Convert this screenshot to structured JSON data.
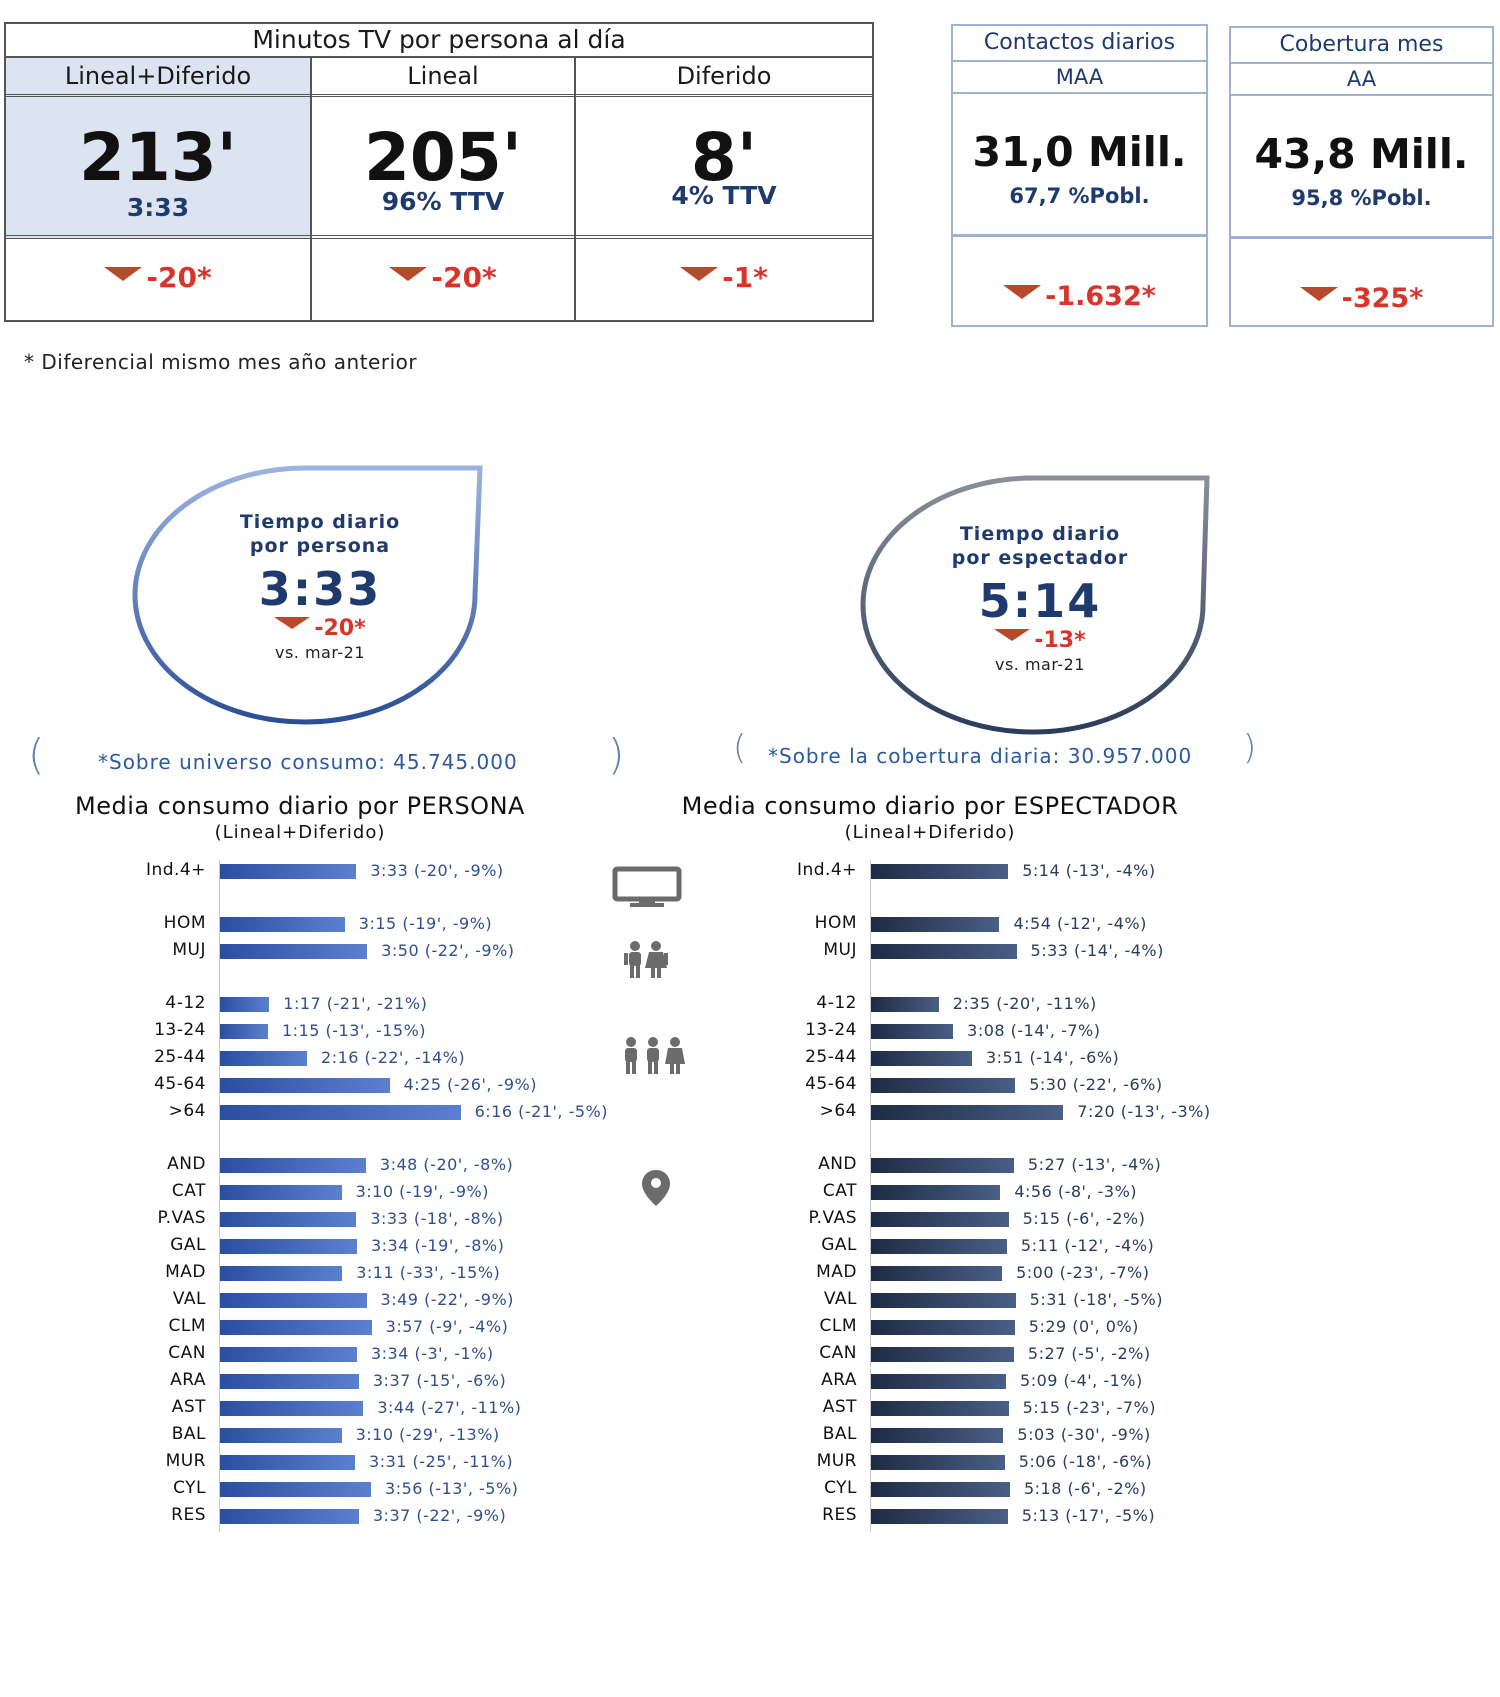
{
  "minutos_tv": {
    "title": "Minutos TV por persona al día",
    "columns": [
      {
        "header": "Lineal+Diferido",
        "value": "213'",
        "sub": "3:33",
        "delta": "-20*"
      },
      {
        "header": "Lineal",
        "value": "205'",
        "sub": "96% TTV",
        "delta": "-20*"
      },
      {
        "header": "Diferido",
        "value": "8'",
        "sub": "4% TTV",
        "delta": "-1*"
      }
    ]
  },
  "contactos": {
    "title": "Contactos diarios",
    "subtitle": "MAA",
    "value": "31,0 Mill.",
    "pct": "67,7 %Pobl.",
    "delta": "-1.632*"
  },
  "cobertura": {
    "title": "Cobertura mes",
    "subtitle": "AA",
    "value": "43,8 Mill.",
    "pct": "95,8 %Pobl.",
    "delta": "-325*"
  },
  "footnote": "* Diferencial mismo mes año anterior",
  "bubble_persona": {
    "label1": "Tiempo diario",
    "label2": "por persona",
    "value": "3:33",
    "delta": "-20*",
    "vs": "vs. mar-21"
  },
  "bubble_espectador": {
    "label1": "Tiempo diario",
    "label2": "por espectador",
    "value": "5:14",
    "delta": "-13*",
    "vs": "vs. mar-21"
  },
  "universo_persona": "*Sobre universo consumo: 45.745.000",
  "universo_espectador": "*Sobre la cobertura diaria: 30.957.000",
  "colors": {
    "persona_bar": "#3a63b8",
    "espectador_bar": "#2b3c5c",
    "delta_red": "#d9342b",
    "triangle": "#b84a2c",
    "box_border": "#9db2d6",
    "highlight": "#dce4f2"
  },
  "icons": [
    "tv-icon",
    "couple-icon",
    "group-icon",
    "location-pin-icon"
  ],
  "chart_data": [
    {
      "type": "bar",
      "title": "Media consumo diario por PERSONA",
      "subtitle": "(Lineal+Diferido)",
      "orientation": "horizontal",
      "categories": [
        "Ind.4+",
        "HOM",
        "MUJ",
        "4-12",
        "13-24",
        "25-44",
        "45-64",
        ">64",
        "AND",
        "CAT",
        "P.VAS",
        "GAL",
        "MAD",
        "VAL",
        "CLM",
        "CAN",
        "ARA",
        "AST",
        "BAL",
        "MUR",
        "CYL",
        "RES"
      ],
      "values_minutes": [
        213,
        195,
        230,
        77,
        75,
        136,
        265,
        376,
        228,
        190,
        213,
        214,
        191,
        229,
        237,
        214,
        217,
        224,
        190,
        211,
        236,
        217
      ],
      "labels": [
        "3:33 (-20', -9%)",
        "3:15 (-19', -9%)",
        "3:50 (-22', -9%)",
        "1:17 (-21', -21%)",
        "1:15 (-13', -15%)",
        "2:16 (-22', -14%)",
        "4:25 (-26', -9%)",
        "6:16 (-21', -5%)",
        "3:48 (-20', -8%)",
        "3:10 (-19', -9%)",
        "3:33 (-18', -8%)",
        "3:34 (-19', -8%)",
        "3:11 (-33', -15%)",
        "3:49 (-22', -9%)",
        "3:57 (-9', -4%)",
        "3:34 (-3', -1%)",
        "3:37 (-15', -6%)",
        "3:44 (-27', -11%)",
        "3:10 (-29', -13%)",
        "3:31 (-25', -11%)",
        "3:56 (-13', -5%)",
        "3:37 (-22', -9%)"
      ]
    },
    {
      "type": "bar",
      "title": "Media consumo diario por ESPECTADOR",
      "subtitle": "(Lineal+Diferido)",
      "orientation": "horizontal",
      "categories": [
        "Ind.4+",
        "HOM",
        "MUJ",
        "4-12",
        "13-24",
        "25-44",
        "45-64",
        ">64",
        "AND",
        "CAT",
        "P.VAS",
        "GAL",
        "MAD",
        "VAL",
        "CLM",
        "CAN",
        "ARA",
        "AST",
        "BAL",
        "MUR",
        "CYL",
        "RES"
      ],
      "values_minutes": [
        314,
        294,
        333,
        155,
        188,
        231,
        330,
        440,
        327,
        296,
        315,
        311,
        300,
        331,
        329,
        327,
        309,
        315,
        303,
        306,
        318,
        313
      ],
      "labels": [
        "5:14 (-13', -4%)",
        "4:54 (-12', -4%)",
        "5:33 (-14', -4%)",
        "2:35 (-20', -11%)",
        "3:08 (-14', -7%)",
        "3:51 (-14', -6%)",
        "5:30 (-22', -6%)",
        "7:20 (-13', -3%)",
        "5:27 (-13', -4%)",
        "4:56 (-8', -3%)",
        "5:15 (-6', -2%)",
        "5:11 (-12', -4%)",
        "5:00 (-23', -7%)",
        "5:31 (-18', -5%)",
        "5:29 (0', 0%)",
        "5:27 (-5', -2%)",
        "5:09 (-4', -1%)",
        "5:15 (-23', -7%)",
        "5:03 (-30', -9%)",
        "5:06 (-18', -6%)",
        "5:18 (-6', -2%)",
        "5:13 (-17', -5%)"
      ]
    }
  ]
}
